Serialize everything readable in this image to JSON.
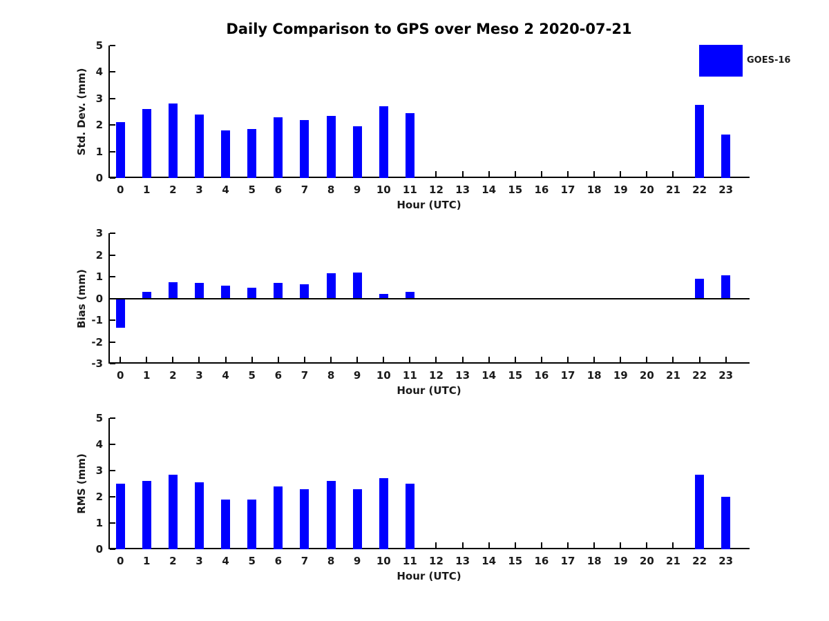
{
  "title": "Daily Comparison to GPS over Meso 2 2020-07-21",
  "legend": {
    "label": "GOES-16",
    "color": "#0000FF"
  },
  "colors": {
    "bar": "#0000FF",
    "axis": "#000000",
    "text": "#1a1a1a"
  },
  "chart_data": [
    {
      "type": "bar",
      "name": "std-dev",
      "series_name": "GOES-16",
      "ylabel": "Std. Dev. (mm)",
      "xlabel": "Hour (UTC)",
      "ylim": [
        0,
        5
      ],
      "yticks": [
        0,
        1,
        2,
        3,
        4,
        5
      ],
      "xlim": [
        -0.45,
        23.9
      ],
      "grid": false,
      "categories": [
        "0",
        "1",
        "2",
        "3",
        "4",
        "5",
        "6",
        "7",
        "8",
        "9",
        "10",
        "11",
        "12",
        "13",
        "14",
        "15",
        "16",
        "17",
        "18",
        "19",
        "20",
        "21",
        "22",
        "23"
      ],
      "values": [
        2.1,
        2.6,
        2.8,
        2.4,
        1.8,
        1.85,
        2.3,
        2.2,
        2.35,
        1.95,
        2.7,
        2.45,
        null,
        null,
        null,
        null,
        null,
        null,
        null,
        null,
        null,
        null,
        2.75,
        1.65
      ]
    },
    {
      "type": "bar",
      "name": "bias",
      "series_name": "GOES-16",
      "ylabel": "Bias (mm)",
      "xlabel": "Hour (UTC)",
      "ylim": [
        -3,
        3
      ],
      "yticks": [
        -3,
        -2,
        -1,
        0,
        1,
        2,
        3
      ],
      "xlim": [
        -0.45,
        23.9
      ],
      "grid": false,
      "zero_line": true,
      "categories": [
        "0",
        "1",
        "2",
        "3",
        "4",
        "5",
        "6",
        "7",
        "8",
        "9",
        "10",
        "11",
        "12",
        "13",
        "14",
        "15",
        "16",
        "17",
        "18",
        "19",
        "20",
        "21",
        "22",
        "23"
      ],
      "values": [
        -1.35,
        0.3,
        0.75,
        0.7,
        0.6,
        0.5,
        0.7,
        0.65,
        1.15,
        1.2,
        0.2,
        0.3,
        null,
        null,
        null,
        null,
        null,
        null,
        null,
        null,
        null,
        null,
        0.9,
        1.05
      ]
    },
    {
      "type": "bar",
      "name": "rms",
      "series_name": "GOES-16",
      "ylabel": "RMS (mm)",
      "xlabel": "Hour (UTC)",
      "ylim": [
        0,
        5
      ],
      "yticks": [
        0,
        1,
        2,
        3,
        4,
        5
      ],
      "xlim": [
        -0.45,
        23.9
      ],
      "grid": false,
      "categories": [
        "0",
        "1",
        "2",
        "3",
        "4",
        "5",
        "6",
        "7",
        "8",
        "9",
        "10",
        "11",
        "12",
        "13",
        "14",
        "15",
        "16",
        "17",
        "18",
        "19",
        "20",
        "21",
        "22",
        "23"
      ],
      "values": [
        2.5,
        2.6,
        2.85,
        2.55,
        1.9,
        1.9,
        2.4,
        2.3,
        2.6,
        2.3,
        2.7,
        2.5,
        null,
        null,
        null,
        null,
        null,
        null,
        null,
        null,
        null,
        null,
        2.85,
        2.0
      ]
    }
  ]
}
